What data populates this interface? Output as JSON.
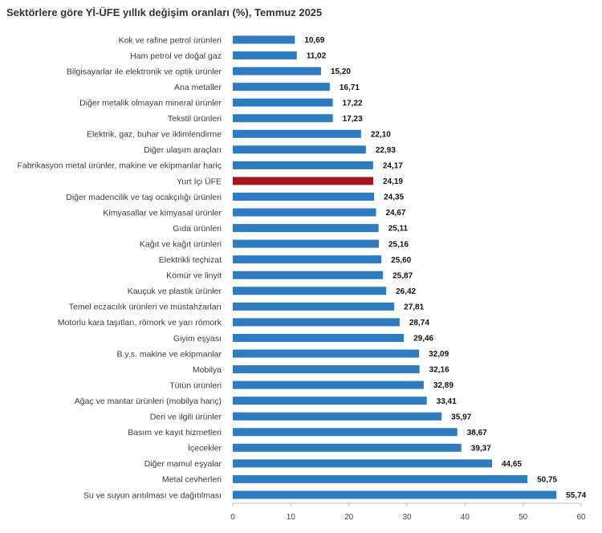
{
  "chart_data": {
    "type": "bar",
    "orientation": "horizontal",
    "title": "Sektörlere göre Yİ-ÜFE yıllık değişim oranları (%), Temmuz 2025",
    "xlabel": "",
    "ylabel": "",
    "xlim": [
      0,
      60
    ],
    "xticks": [
      "0",
      "10",
      "20",
      "30",
      "40",
      "50",
      "60"
    ],
    "grid": false,
    "legend": "none",
    "colors": {
      "bar": "#2e7bbf",
      "highlight": "#a3161b"
    },
    "categories": [
      "Kok ve rafine petrol ürünleri",
      "Ham petrol ve doğal gaz",
      "Bilgisayarlar ile elektronik ve optik ürünler",
      "Ana metaller",
      "Diğer metalik olmayan mineral ürünler",
      "Tekstil ürünleri",
      "Elektrik, gaz, buhar ve iklimlendirme",
      "Diğer ulaşım araçları",
      "Fabrikasyon metal ürünler, makine ve ekipmanlar hariç",
      "Yurt İçi ÜFE",
      "Diğer madencilik ve taş ocakçılığı ürünleri",
      "Kimyasallar ve kimyasal ürünler",
      "Gıda ürünleri",
      "Kağıt ve kağıt ürünleri",
      "Elektrikli teçhizat",
      "Kömür ve linyit",
      "Kauçuk ve plastik ürünler",
      "Temel eczacılık ürünleri ve müstahzarları",
      "Motorlu kara taşıtları, römork ve yarı römork",
      "Giyim eşyası",
      "B.y.s. makine ve ekipmanlar",
      "Mobilya",
      "Tütün ürünleri",
      "Ağaç ve mantar ürünleri (mobilya hariç)",
      "Deri ve ilgili ürünler",
      "Basım ve kayıt hizmetleri",
      "İçecekler",
      "Diğer mamul eşyalar",
      "Metal cevherleri",
      "Su ve suyun arıtılması ve dağıtılması"
    ],
    "values": [
      10.69,
      11.02,
      15.2,
      16.71,
      17.22,
      17.23,
      22.1,
      22.93,
      24.17,
      24.19,
      24.35,
      24.67,
      25.11,
      25.16,
      25.6,
      25.87,
      26.42,
      27.81,
      28.74,
      29.46,
      32.09,
      32.16,
      32.89,
      33.41,
      35.97,
      38.67,
      39.37,
      44.65,
      50.75,
      55.74
    ],
    "value_labels": [
      "10,69",
      "11,02",
      "15,20",
      "16,71",
      "17,22",
      "17,23",
      "22,10",
      "22,93",
      "24,17",
      "24,19",
      "24,35",
      "24,67",
      "25,11",
      "25,16",
      "25,60",
      "25,87",
      "26,42",
      "27,81",
      "28,74",
      "29,46",
      "32,09",
      "32,16",
      "32,89",
      "33,41",
      "35,97",
      "38,67",
      "39,37",
      "44,65",
      "50,75",
      "55,74"
    ],
    "highlight_category": "Yurt İçi ÜFE"
  }
}
